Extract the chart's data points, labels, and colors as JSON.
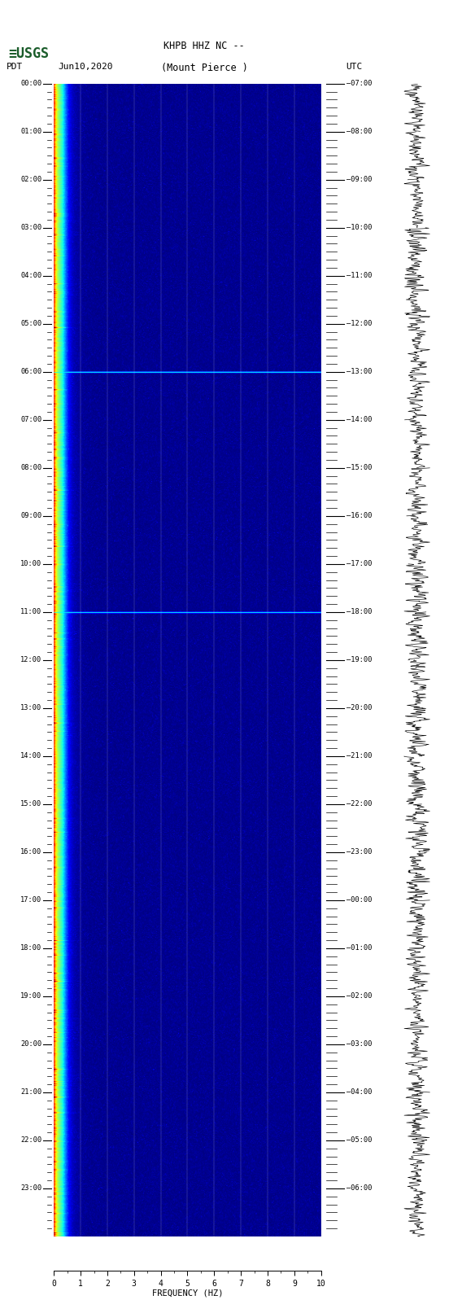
{
  "title_line1": "KHPB HHZ NC --",
  "title_line2": "(Mount Pierce )",
  "left_label": "PDT",
  "date_label": "Jun10,2020",
  "right_label": "UTC",
  "xlabel": "FREQUENCY (HZ)",
  "freq_min": 0,
  "freq_max": 10,
  "time_hours": 24,
  "left_ticks": [
    "00:00",
    "01:00",
    "02:00",
    "03:00",
    "04:00",
    "05:00",
    "06:00",
    "07:00",
    "08:00",
    "09:00",
    "10:00",
    "11:00",
    "12:00",
    "13:00",
    "14:00",
    "15:00",
    "16:00",
    "17:00",
    "18:00",
    "19:00",
    "20:00",
    "21:00",
    "22:00",
    "23:00"
  ],
  "right_ticks": [
    "07:00",
    "08:00",
    "09:00",
    "10:00",
    "11:00",
    "12:00",
    "13:00",
    "14:00",
    "15:00",
    "16:00",
    "17:00",
    "18:00",
    "19:00",
    "20:00",
    "21:00",
    "22:00",
    "23:00",
    "00:00",
    "01:00",
    "02:00",
    "03:00",
    "04:00",
    "05:00",
    "06:00"
  ],
  "bg_color": "#000080",
  "spectrogram_bg": "#000080",
  "colormap": "jet",
  "seed": 42,
  "horizontal_line_hours": [
    6.0,
    11.0
  ],
  "waveform_color": "#000000",
  "usgs_green": "#1a5c2a",
  "minor_ticks_per_hour": 6,
  "vmin": 0,
  "vmax": 7
}
